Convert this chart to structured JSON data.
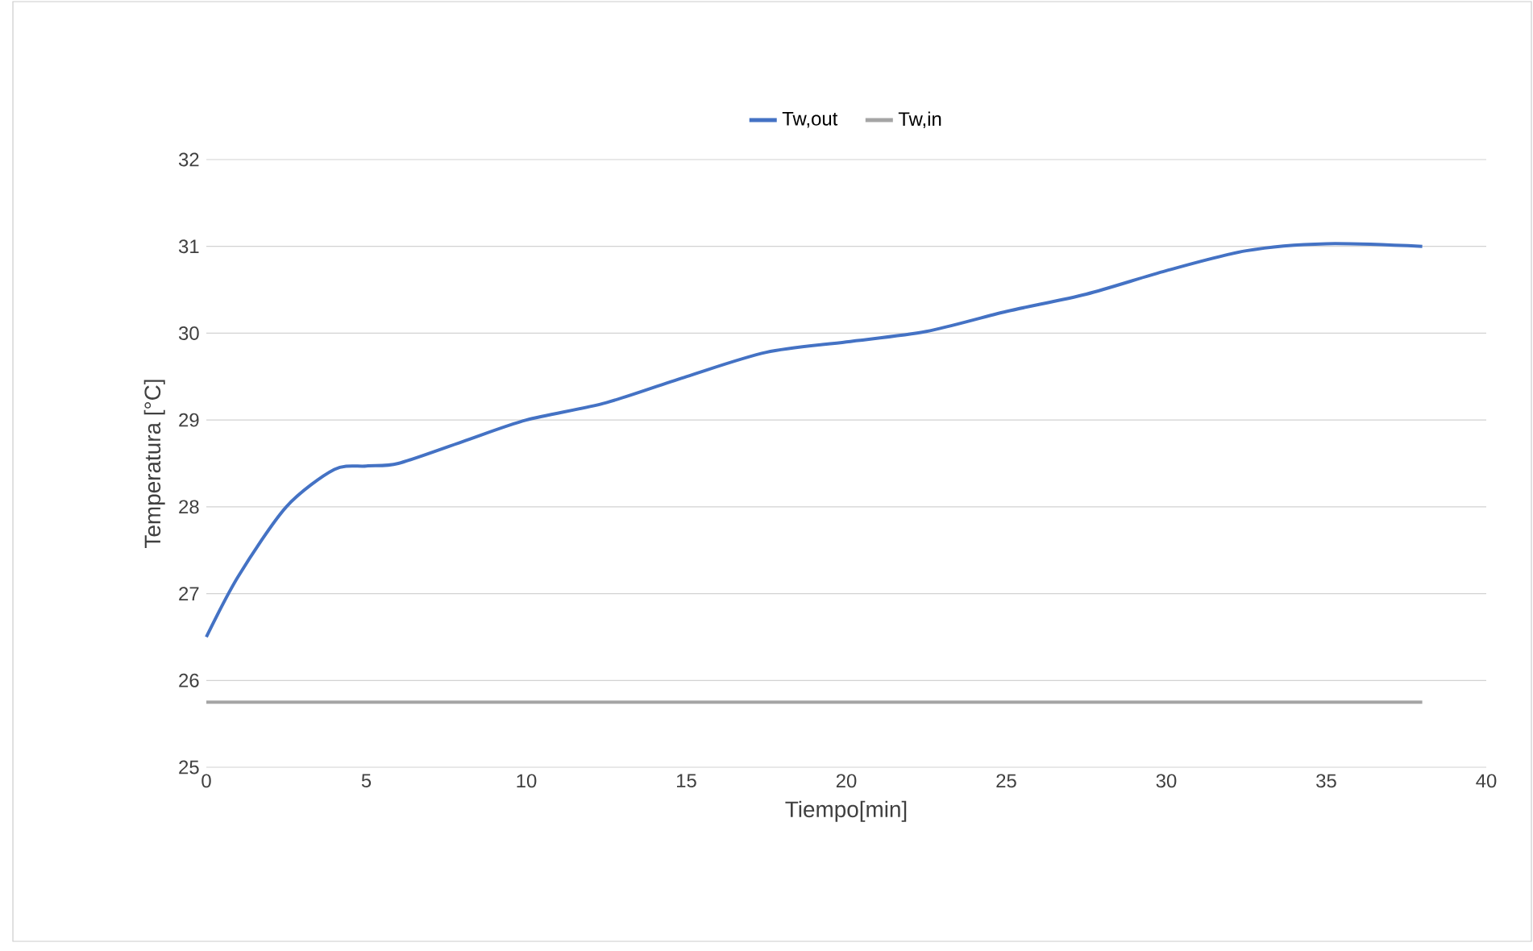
{
  "chart_data": {
    "type": "line",
    "xlabel": "Tiempo[min]",
    "ylabel": "Temperatura [°C]",
    "xlim": [
      0,
      40
    ],
    "xticks": [
      0,
      5,
      10,
      15,
      20,
      25,
      30,
      35,
      40
    ],
    "ylim": [
      25,
      32
    ],
    "yticks": [
      25,
      26,
      27,
      28,
      29,
      30,
      31,
      32
    ],
    "grid": "y",
    "legend": "top",
    "marker": "none",
    "line_style": "solid",
    "series": [
      {
        "name": "Tw,out",
        "color": "#4472c4",
        "x": [
          0,
          1,
          2.5,
          4,
          5,
          6,
          8,
          10,
          12.5,
          15,
          17.5,
          20,
          22.5,
          25,
          27.5,
          30,
          32.5,
          35,
          38
        ],
        "values": [
          26.5,
          27.2,
          28.0,
          28.43,
          28.47,
          28.5,
          28.75,
          29.0,
          29.2,
          29.5,
          29.78,
          29.9,
          30.02,
          30.25,
          30.45,
          30.72,
          30.95,
          31.03,
          31.0
        ]
      },
      {
        "name": "Tw,in",
        "color": "#a5a5a5",
        "x": [
          0,
          38
        ],
        "values": [
          25.75,
          25.75
        ]
      }
    ]
  }
}
